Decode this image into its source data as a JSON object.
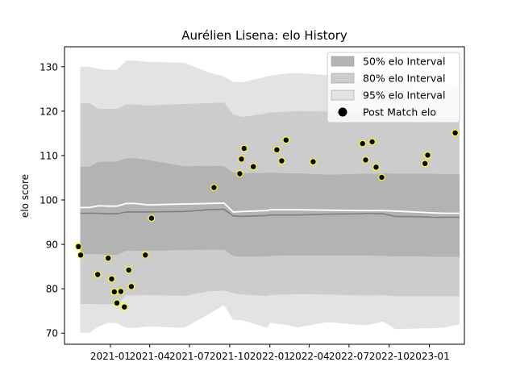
{
  "chart_data": {
    "type": "area",
    "title": "Aurélien Lisena: elo History",
    "xlabel": "",
    "ylabel": "elo score",
    "xlim": [
      "2020-09-18",
      "2023-03-22"
    ],
    "ylim": [
      67.5,
      134.5
    ],
    "x_ticks": [
      "2021-01",
      "2021-04",
      "2021-07",
      "2021-10",
      "2022-01",
      "2022-04",
      "2022-07",
      "2022-10",
      "2023-01"
    ],
    "y_ticks": [
      70,
      80,
      90,
      100,
      110,
      120,
      130
    ],
    "grid": false,
    "legend_position": "top-right",
    "colors": {
      "band50": "#b3b3b3",
      "band80": "#cccccc",
      "band95": "#e3e3e3",
      "mean_line": "#ffffff",
      "median_line": "#808080",
      "marker_fill": "#000000",
      "marker_edge": "#ffff00"
    },
    "legend": [
      {
        "label": "50% elo Interval",
        "kind": "band50"
      },
      {
        "label": "80% elo Interval",
        "kind": "band80"
      },
      {
        "label": "95% elo Interval",
        "kind": "band95"
      },
      {
        "label": "Post Match elo",
        "kind": "marker"
      }
    ],
    "x": [
      "2020-10-24",
      "2020-11-14",
      "2020-12-05",
      "2020-12-26",
      "2021-01-09",
      "2021-01-16",
      "2021-02-06",
      "2021-02-27",
      "2021-03-27",
      "2021-06-19",
      "2021-08-14",
      "2021-09-18",
      "2021-10-09",
      "2021-10-30",
      "2021-12-25",
      "2022-01-01",
      "2022-02-12",
      "2022-03-05",
      "2022-05-14",
      "2022-07-30",
      "2022-08-13",
      "2022-09-03",
      "2022-09-17",
      "2022-10-15",
      "2022-12-17",
      "2023-01-07",
      "2023-02-04",
      "2023-03-11"
    ],
    "series": [
      {
        "name": "95% elo Interval",
        "lower": [
          70.1,
          70.1,
          71.5,
          72.3,
          72.3,
          72.3,
          71.2,
          71.2,
          71.5,
          71.2,
          74.3,
          76.3,
          73.0,
          72.9,
          71.2,
          72.3,
          71.8,
          71.3,
          72.5,
          71.8,
          71.8,
          72.3,
          72.6,
          70.9,
          71.1,
          71.1,
          71.3,
          72.0
        ],
        "upper": [
          130.0,
          130.0,
          129.5,
          129.3,
          129.3,
          129.3,
          131.4,
          131.4,
          131.1,
          130.9,
          128.7,
          127.8,
          126.6,
          126.5,
          127.8,
          128.0,
          128.5,
          128.6,
          128.1,
          127.0,
          126.9,
          126.5,
          126.6,
          126.5,
          126.0,
          126.0,
          126.0,
          125.9
        ]
      },
      {
        "name": "80% elo Interval",
        "lower": [
          76.6,
          76.6,
          76.5,
          76.5,
          76.5,
          76.5,
          78.5,
          78.5,
          78.6,
          78.4,
          79.4,
          79.6,
          79.0,
          78.7,
          78.4,
          78.6,
          78.7,
          78.8,
          78.7,
          78.5,
          78.5,
          78.5,
          78.6,
          78.3,
          78.3,
          78.3,
          78.3,
          78.3
        ],
        "upper": [
          121.8,
          121.8,
          120.5,
          120.5,
          120.5,
          120.5,
          121.5,
          121.5,
          121.3,
          121.6,
          121.8,
          121.9,
          119.3,
          118.7,
          119.5,
          119.7,
          119.9,
          120.0,
          119.9,
          119.6,
          119.5,
          119.3,
          119.4,
          119.3,
          118.5,
          118.5,
          118.4,
          118.4
        ]
      },
      {
        "name": "50% elo Interval",
        "lower": [
          87.8,
          87.8,
          87.8,
          87.6,
          87.6,
          87.6,
          88.5,
          88.5,
          88.6,
          88.7,
          88.8,
          88.8,
          87.4,
          87.2,
          87.3,
          87.4,
          87.5,
          87.5,
          87.5,
          87.5,
          87.5,
          87.4,
          87.4,
          87.3,
          87.3,
          87.2,
          87.2,
          87.2
        ],
        "upper": [
          107.5,
          107.5,
          108.6,
          108.6,
          108.6,
          108.6,
          109.4,
          109.4,
          109.0,
          107.6,
          107.7,
          107.6,
          106.2,
          106.0,
          106.1,
          106.2,
          106.0,
          106.0,
          105.7,
          105.9,
          105.9,
          105.9,
          106.0,
          105.9,
          105.9,
          105.9,
          105.8,
          105.8
        ]
      },
      {
        "name": "Mean",
        "values": [
          98.3,
          98.3,
          98.7,
          98.6,
          98.6,
          98.6,
          99.2,
          99.2,
          98.9,
          99.1,
          99.2,
          99.3,
          97.3,
          97.4,
          97.6,
          97.8,
          97.8,
          97.8,
          97.7,
          97.6,
          97.6,
          97.6,
          97.6,
          97.5,
          97.2,
          97.1,
          97.0,
          97.0
        ]
      },
      {
        "name": "Median",
        "values": [
          97.0,
          97.0,
          97.0,
          96.9,
          96.9,
          96.9,
          97.3,
          97.3,
          97.3,
          97.4,
          97.8,
          97.9,
          96.4,
          96.3,
          96.5,
          96.6,
          96.6,
          96.6,
          96.8,
          96.9,
          97.0,
          96.9,
          96.9,
          96.3,
          96.2,
          96.1,
          96.1,
          96.1
        ]
      }
    ],
    "points": {
      "name": "Post Match elo",
      "x": [
        "2020-10-20",
        "2020-10-25",
        "2020-12-03",
        "2020-12-27",
        "2021-01-04",
        "2021-01-10",
        "2021-01-16",
        "2021-01-25",
        "2021-02-02",
        "2021-02-12",
        "2021-02-18",
        "2021-03-22",
        "2021-04-05",
        "2021-08-26",
        "2021-10-24",
        "2021-10-28",
        "2021-11-03",
        "2021-11-24",
        "2022-01-17",
        "2022-01-28",
        "2022-02-07",
        "2022-04-10",
        "2022-08-01",
        "2022-08-08",
        "2022-08-23",
        "2022-09-01",
        "2022-09-14",
        "2022-12-22",
        "2022-12-28",
        "2023-03-01"
      ],
      "values": [
        89.5,
        87.6,
        83.2,
        86.9,
        82.2,
        79.3,
        76.8,
        79.4,
        75.9,
        84.2,
        80.5,
        87.6,
        95.9,
        102.8,
        105.9,
        109.2,
        111.6,
        107.5,
        111.3,
        108.8,
        113.5,
        108.6,
        112.7,
        109.0,
        113.1,
        107.4,
        105.1,
        108.2,
        110.1,
        115.1
      ]
    }
  }
}
